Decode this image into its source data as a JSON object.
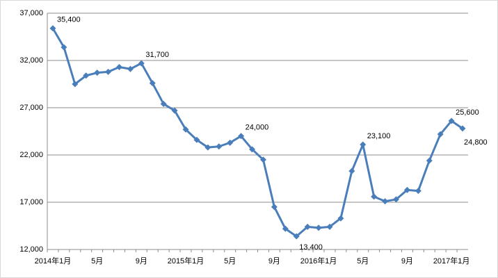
{
  "chart_data": {
    "type": "line",
    "categories": [
      "2014年1月",
      null,
      null,
      null,
      "5月",
      null,
      null,
      null,
      "9月",
      null,
      null,
      null,
      "2015年1月",
      null,
      null,
      null,
      "5月",
      null,
      null,
      null,
      "9月",
      null,
      null,
      null,
      "2016年1月",
      null,
      null,
      null,
      "5月",
      null,
      null,
      null,
      "9月",
      null,
      null,
      null,
      "2017年1月",
      null
    ],
    "series": [
      {
        "name": null,
        "color": "#4a7ebb",
        "values": [
          35400,
          33400,
          29500,
          30400,
          30700,
          30800,
          31300,
          31100,
          31700,
          29600,
          27400,
          26700,
          24700,
          23600,
          22800,
          22900,
          23300,
          24000,
          22600,
          21500,
          16500,
          14200,
          13400,
          14400,
          14300,
          14400,
          15300,
          20300,
          23100,
          17600,
          17100,
          17300,
          18300,
          18200,
          21400,
          24200,
          25600,
          24800
        ],
        "value_labels": [
          "35,400",
          null,
          null,
          null,
          null,
          null,
          null,
          null,
          "31,700",
          null,
          null,
          null,
          null,
          null,
          null,
          null,
          null,
          "24,000",
          null,
          null,
          null,
          null,
          "13,400",
          null,
          null,
          null,
          null,
          null,
          "23,100",
          null,
          null,
          null,
          null,
          null,
          null,
          null,
          "25,600",
          "24,800"
        ]
      }
    ],
    "ylim": [
      12000,
      37000
    ],
    "yticks": [
      {
        "value": 12000,
        "label": "12,000"
      },
      {
        "value": 17000,
        "label": "17,000"
      },
      {
        "value": 22000,
        "label": "22,000"
      },
      {
        "value": 27000,
        "label": "27,000"
      },
      {
        "value": 32000,
        "label": "32,000"
      },
      {
        "value": 37000,
        "label": "37,000"
      }
    ],
    "grid": true
  }
}
